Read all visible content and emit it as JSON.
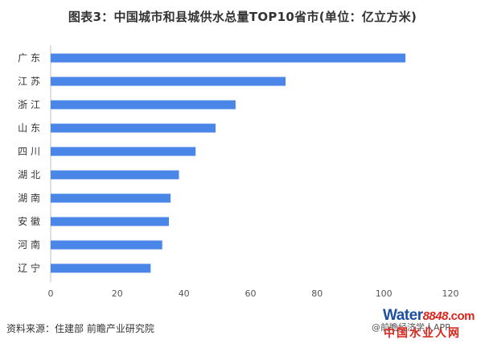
{
  "title": "图表3：中国城市和县城供水总量TOP10省市(单位：亿立方米)",
  "source": "资料来源：住建部 前瞻产业研究院",
  "watermark": {
    "app_text": "@前瞻经济学人APP",
    "logo_word": "Water",
    "logo_num": "8848",
    "logo_tld": ".com",
    "logo_sub": "中国水业人网"
  },
  "chart_data": {
    "type": "bar",
    "orientation": "horizontal",
    "categories": [
      "广 东",
      "江 苏",
      "浙 江",
      "山 东",
      "四 川",
      "湖 北",
      "湖 南",
      "安 徽",
      "河 南",
      "辽 宁"
    ],
    "values": [
      106.5,
      70.5,
      55.5,
      49.5,
      43.5,
      38.5,
      36,
      35.5,
      33.5,
      30
    ],
    "xlim": [
      0,
      120
    ],
    "xticks": [
      0,
      20,
      40,
      60,
      80,
      100,
      120
    ],
    "grid": false,
    "bar_color": "#4a86e8",
    "axis_color": "#bfbfbf"
  }
}
